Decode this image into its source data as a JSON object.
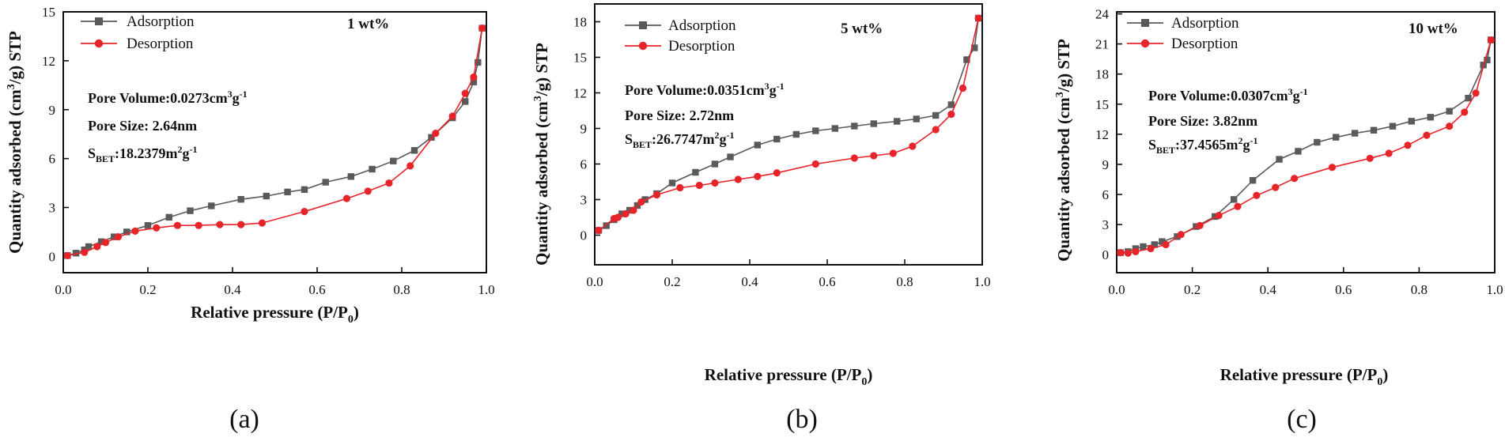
{
  "colors": {
    "adsorption": "#5a5a5a",
    "desorption": "#e8242b",
    "axis": "#111111"
  },
  "chart_data": [
    {
      "type": "line",
      "panel_label": "(a)",
      "subtitle": "1 wt%",
      "xlabel": "Relative pressure (P/P0)",
      "xlabel_parts": {
        "main": "Relative pressure (P/P",
        "sub": "0",
        "end": ")"
      },
      "ylabel": "Quantity adsorbed (cm3/g) STP",
      "ylabel_parts": {
        "pre": "Quantity adsorbed (cm",
        "sup": "3",
        "post": "/g) STP"
      },
      "xlim": [
        0,
        1.0
      ],
      "ylim": [
        -1,
        15
      ],
      "xticks": [
        0.0,
        0.2,
        0.4,
        0.6,
        0.8,
        1.0
      ],
      "xtick_labels": [
        "0.0",
        "0.2",
        "0.4",
        "0.6",
        "0.8",
        "1.0"
      ],
      "yticks": [
        0,
        3,
        6,
        9,
        12,
        15
      ],
      "ytick_labels": [
        "0",
        "3",
        "6",
        "9",
        "12",
        "15"
      ],
      "legend": {
        "placement": "top-left",
        "entries": [
          "Adsorption",
          "Desorption"
        ]
      },
      "annotations": {
        "pore_volume": {
          "pre": "Pore Volume:0.0273cm",
          "sup1": "3",
          "mid": "g",
          "sup2": "-1"
        },
        "pore_size": "Pore Size: 2.64nm",
        "sbet": {
          "pre": "S",
          "sub": "BET",
          "mid": ":18.2379m",
          "sup1": "2",
          "mid2": "g",
          "sup2": "-1"
        }
      },
      "series": [
        {
          "name": "Adsorption",
          "x": [
            0.01,
            0.03,
            0.05,
            0.06,
            0.09,
            0.12,
            0.15,
            0.2,
            0.25,
            0.3,
            0.35,
            0.42,
            0.48,
            0.53,
            0.57,
            0.62,
            0.68,
            0.73,
            0.78,
            0.83,
            0.87,
            0.92,
            0.95,
            0.97,
            0.98,
            0.99
          ],
          "y": [
            0.05,
            0.2,
            0.4,
            0.6,
            0.9,
            1.2,
            1.5,
            1.9,
            2.4,
            2.8,
            3.1,
            3.5,
            3.7,
            3.95,
            4.1,
            4.55,
            4.9,
            5.35,
            5.85,
            6.5,
            7.3,
            8.5,
            9.5,
            10.7,
            11.9,
            14.0
          ]
        },
        {
          "name": "Desorption",
          "x": [
            0.01,
            0.05,
            0.08,
            0.1,
            0.13,
            0.17,
            0.22,
            0.27,
            0.32,
            0.37,
            0.42,
            0.47,
            0.57,
            0.67,
            0.72,
            0.77,
            0.82,
            0.88,
            0.92,
            0.95,
            0.97,
            0.99
          ],
          "y": [
            0.05,
            0.25,
            0.6,
            0.85,
            1.2,
            1.55,
            1.75,
            1.9,
            1.9,
            1.95,
            1.95,
            2.05,
            2.75,
            3.55,
            4.0,
            4.5,
            5.55,
            7.55,
            8.6,
            10.0,
            11.0,
            14.0
          ]
        }
      ]
    },
    {
      "type": "line",
      "panel_label": "(b)",
      "subtitle": "5 wt%",
      "xlabel": "Relative pressure (P/P0)",
      "xlabel_parts": {
        "main": "Relative pressure (P/P",
        "sub": "0",
        "end": ")"
      },
      "ylabel": "Quantity adsorbed (cm3/g) STP",
      "ylabel_parts": {
        "pre": "Quantity adsorbed (cm",
        "sup": "3",
        "post": "/g) STP"
      },
      "xlim": [
        0,
        1.0
      ],
      "ylim": [
        -2.5,
        19.5
      ],
      "xticks": [
        0.0,
        0.2,
        0.4,
        0.6,
        0.8,
        1.0
      ],
      "xtick_labels": [
        "0.0",
        "0.2",
        "0.4",
        "0.6",
        "0.8",
        "1.0"
      ],
      "yticks": [
        0,
        3,
        6,
        9,
        12,
        15,
        18
      ],
      "ytick_labels": [
        "0",
        "3",
        "6",
        "9",
        "12",
        "15",
        "18"
      ],
      "legend": {
        "placement": "top-left",
        "entries": [
          "Adsorption",
          "Desorption"
        ]
      },
      "annotations": {
        "pore_volume": {
          "pre": "Pore Volume:0.0351cm",
          "sup1": "3",
          "mid": "g",
          "sup2": "-1"
        },
        "pore_size": "Pore Size: 2.72nm",
        "sbet": {
          "pre": "S",
          "sub": "BET",
          "mid": ":26.7747m",
          "sup1": "2",
          "mid2": "g",
          "sup2": "-1"
        }
      },
      "series": [
        {
          "name": "Adsorption",
          "x": [
            0.01,
            0.03,
            0.05,
            0.07,
            0.09,
            0.11,
            0.13,
            0.16,
            0.2,
            0.26,
            0.31,
            0.35,
            0.42,
            0.47,
            0.52,
            0.57,
            0.62,
            0.67,
            0.72,
            0.78,
            0.83,
            0.88,
            0.92,
            0.96,
            0.98,
            0.99
          ],
          "y": [
            0.4,
            0.8,
            1.3,
            1.8,
            2.1,
            2.5,
            3.0,
            3.5,
            4.4,
            5.3,
            6.0,
            6.6,
            7.6,
            8.1,
            8.5,
            8.8,
            9.0,
            9.2,
            9.4,
            9.6,
            9.8,
            10.1,
            11.0,
            14.8,
            15.8,
            18.3
          ]
        },
        {
          "name": "Desorption",
          "x": [
            0.01,
            0.05,
            0.06,
            0.08,
            0.1,
            0.12,
            0.16,
            0.22,
            0.27,
            0.31,
            0.37,
            0.42,
            0.47,
            0.57,
            0.67,
            0.72,
            0.77,
            0.82,
            0.88,
            0.92,
            0.95,
            0.99
          ],
          "y": [
            0.4,
            1.4,
            1.5,
            1.8,
            2.1,
            2.8,
            3.4,
            4.0,
            4.2,
            4.4,
            4.7,
            4.95,
            5.25,
            6.0,
            6.5,
            6.7,
            6.9,
            7.5,
            8.9,
            10.2,
            12.4,
            18.3
          ]
        }
      ]
    },
    {
      "type": "line",
      "panel_label": "(c)",
      "subtitle": "10 wt%",
      "xlabel": "Relative pressure (P/P0)",
      "xlabel_parts": {
        "main": "Relative pressure (P/P",
        "sub": "0",
        "end": ")"
      },
      "ylabel": "Quantity adsorbed (cm3/g) STP",
      "ylabel_parts": {
        "pre": "Quantity adsorbed (cm",
        "sup": "3",
        "post": "/g) STP"
      },
      "xlim": [
        0,
        1.0
      ],
      "ylim": [
        -1.8,
        24.2
      ],
      "xticks": [
        0.0,
        0.2,
        0.4,
        0.6,
        0.8,
        1.0
      ],
      "xtick_labels": [
        "0.0",
        "0.2",
        "0.4",
        "0.6",
        "0.8",
        "1.0"
      ],
      "yticks": [
        0,
        3,
        6,
        9,
        12,
        15,
        18,
        21,
        24
      ],
      "ytick_labels": [
        "0",
        "3",
        "6",
        "9",
        "12",
        "15",
        "18",
        "21",
        "24"
      ],
      "legend": {
        "placement": "top-left",
        "entries": [
          "Adsorption",
          "Desorption"
        ]
      },
      "annotations": {
        "pore_volume": {
          "pre": "Pore Volume:0.0307cm",
          "sup1": "3",
          "mid": "g",
          "sup2": "-1"
        },
        "pore_size": "Pore Size: 3.82nm",
        "sbet": {
          "pre": "S",
          "sub": "BET",
          "mid": ":37.4565m",
          "sup1": "2",
          "mid2": "g",
          "sup2": "-1"
        }
      },
      "series": [
        {
          "name": "Adsorption",
          "x": [
            0.01,
            0.03,
            0.05,
            0.07,
            0.1,
            0.12,
            0.16,
            0.21,
            0.26,
            0.31,
            0.36,
            0.43,
            0.48,
            0.53,
            0.58,
            0.63,
            0.68,
            0.73,
            0.78,
            0.83,
            0.88,
            0.93,
            0.97,
            0.98,
            0.99
          ],
          "y": [
            0.2,
            0.3,
            0.6,
            0.8,
            1.0,
            1.3,
            1.8,
            2.8,
            3.8,
            5.5,
            7.4,
            9.5,
            10.3,
            11.2,
            11.7,
            12.1,
            12.4,
            12.8,
            13.3,
            13.7,
            14.3,
            15.6,
            18.9,
            19.4,
            21.4
          ]
        },
        {
          "name": "Desorption",
          "x": [
            0.01,
            0.03,
            0.05,
            0.09,
            0.13,
            0.17,
            0.22,
            0.27,
            0.32,
            0.37,
            0.42,
            0.47,
            0.57,
            0.67,
            0.72,
            0.77,
            0.82,
            0.88,
            0.92,
            0.95,
            0.99
          ],
          "y": [
            0.2,
            0.15,
            0.3,
            0.6,
            1.0,
            2.0,
            2.9,
            3.9,
            4.8,
            5.9,
            6.7,
            7.6,
            8.7,
            9.6,
            10.1,
            10.9,
            11.9,
            12.8,
            14.2,
            16.1,
            21.4
          ]
        }
      ]
    }
  ]
}
